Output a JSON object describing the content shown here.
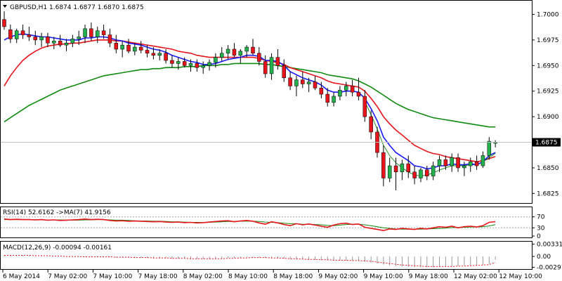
{
  "chart_data": [
    {
      "type": "candlestick",
      "symbol_header": "GBPUSD,H1  1.6874 1.6877 1.6870 1.6875",
      "price_axis": {
        "ticks": [
          "1.7000",
          "1.6975",
          "1.6950",
          "1.6925",
          "1.6900",
          "1.6850",
          "1.6825"
        ],
        "range": [
          1.6817,
          1.7012
        ],
        "current_price": "1.6875"
      },
      "x_axis_labels": [
        "6 May 2014",
        "7 May 02:00",
        "7 May 10:00",
        "7 May 18:00",
        "8 May 02:00",
        "8 May 10:00",
        "8 May 18:00",
        "9 May 02:00",
        "9 May 10:00",
        "9 May 18:00",
        "12 May 02:00",
        "12 May 10:00"
      ],
      "colors": {
        "up": "#22b14c",
        "down": "#e8141c",
        "wick": "#000000",
        "ma_fast": "#1a1aff",
        "ma_mid": "#e8141c",
        "ma_slow": "#128a12",
        "ma_thin": "#128a12"
      },
      "candles": [
        [
          1.6995,
          1.7003,
          1.6985,
          1.6988
        ],
        [
          1.6985,
          1.699,
          1.6972,
          1.6976
        ],
        [
          1.6976,
          1.6986,
          1.6972,
          1.6984
        ],
        [
          1.6984,
          1.699,
          1.6976,
          1.698
        ],
        [
          1.698,
          1.6988,
          1.6974,
          1.6978
        ],
        [
          1.6978,
          1.6984,
          1.697,
          1.6975
        ],
        [
          1.6975,
          1.6982,
          1.6968,
          1.6978
        ],
        [
          1.6978,
          1.6982,
          1.6968,
          1.6972
        ],
        [
          1.6972,
          1.6978,
          1.6966,
          1.6974
        ],
        [
          1.6974,
          1.698,
          1.6968,
          1.697
        ],
        [
          1.697,
          1.6976,
          1.6964,
          1.6972
        ],
        [
          1.6972,
          1.698,
          1.6968,
          1.6976
        ],
        [
          1.6976,
          1.6984,
          1.697,
          1.6978
        ],
        [
          1.6978,
          1.699,
          1.6972,
          1.6986
        ],
        [
          1.6986,
          1.6992,
          1.6974,
          1.6978
        ],
        [
          1.6978,
          1.6988,
          1.6972,
          1.6984
        ],
        [
          1.6984,
          1.699,
          1.6976,
          1.698
        ],
        [
          1.698,
          1.6986,
          1.6968,
          1.6972
        ],
        [
          1.6972,
          1.698,
          1.6962,
          1.6966
        ],
        [
          1.6966,
          1.6974,
          1.6958,
          1.697
        ],
        [
          1.697,
          1.6976,
          1.6962,
          1.6964
        ],
        [
          1.6964,
          1.6972,
          1.696,
          1.6968
        ],
        [
          1.6968,
          1.6974,
          1.6962,
          1.6965
        ],
        [
          1.6965,
          1.697,
          1.6958,
          1.6962
        ],
        [
          1.6962,
          1.6968,
          1.6956,
          1.696
        ],
        [
          1.696,
          1.6966,
          1.6955,
          1.6962
        ],
        [
          1.6962,
          1.6966,
          1.6952,
          1.6955
        ],
        [
          1.6955,
          1.696,
          1.6948,
          1.6952
        ],
        [
          1.6952,
          1.6958,
          1.6946,
          1.6954
        ],
        [
          1.6954,
          1.6958,
          1.6948,
          1.695
        ],
        [
          1.695,
          1.6956,
          1.6944,
          1.6952
        ],
        [
          1.6952,
          1.6956,
          1.6944,
          1.6948
        ],
        [
          1.6948,
          1.6954,
          1.6942,
          1.695
        ],
        [
          1.695,
          1.6956,
          1.6945,
          1.6953
        ],
        [
          1.6953,
          1.6962,
          1.6948,
          1.6958
        ],
        [
          1.6958,
          1.6968,
          1.6954,
          1.6962
        ],
        [
          1.6962,
          1.697,
          1.6956,
          1.6966
        ],
        [
          1.6966,
          1.6972,
          1.6958,
          1.696
        ],
        [
          1.696,
          1.6966,
          1.6952,
          1.6964
        ],
        [
          1.6964,
          1.697,
          1.6958,
          1.6968
        ],
        [
          1.6968,
          1.6976,
          1.696,
          1.6962
        ],
        [
          1.6962,
          1.6968,
          1.695,
          1.6954
        ],
        [
          1.6954,
          1.696,
          1.6938,
          1.6942
        ],
        [
          1.6942,
          1.6962,
          1.6936,
          1.6958
        ],
        [
          1.6958,
          1.6966,
          1.6946,
          1.695
        ],
        [
          1.695,
          1.6956,
          1.6934,
          1.6938
        ],
        [
          1.6938,
          1.6944,
          1.6926,
          1.693
        ],
        [
          1.693,
          1.694,
          1.692,
          1.6936
        ],
        [
          1.6936,
          1.6944,
          1.6928,
          1.6932
        ],
        [
          1.6932,
          1.6938,
          1.6924,
          1.6934
        ],
        [
          1.6934,
          1.694,
          1.6926,
          1.6928
        ],
        [
          1.6928,
          1.6934,
          1.6918,
          1.6922
        ],
        [
          1.6922,
          1.6928,
          1.691,
          1.6914
        ],
        [
          1.6914,
          1.6924,
          1.691,
          1.692
        ],
        [
          1.692,
          1.693,
          1.6916,
          1.6926
        ],
        [
          1.6926,
          1.6934,
          1.692,
          1.693
        ],
        [
          1.693,
          1.6936,
          1.692,
          1.6924
        ],
        [
          1.6924,
          1.6938,
          1.6916,
          1.692
        ],
        [
          1.692,
          1.6926,
          1.6895,
          1.69
        ],
        [
          1.69,
          1.6906,
          1.6878,
          1.6885
        ],
        [
          1.6885,
          1.689,
          1.686,
          1.6865
        ],
        [
          1.6865,
          1.6872,
          1.6832,
          1.684
        ],
        [
          1.684,
          1.686,
          1.6836,
          1.6852
        ],
        [
          1.6852,
          1.686,
          1.6828,
          1.6846
        ],
        [
          1.6846,
          1.6858,
          1.6838,
          1.6854
        ],
        [
          1.6854,
          1.6862,
          1.684,
          1.6846
        ],
        [
          1.6846,
          1.6852,
          1.6834,
          1.684
        ],
        [
          1.684,
          1.685,
          1.6836,
          1.6848
        ],
        [
          1.6848,
          1.6852,
          1.6838,
          1.6842
        ],
        [
          1.6842,
          1.6856,
          1.6838,
          1.6852
        ],
        [
          1.6852,
          1.6862,
          1.6846,
          1.6858
        ],
        [
          1.6858,
          1.6862,
          1.6848,
          1.6852
        ],
        [
          1.6852,
          1.6864,
          1.6846,
          1.686
        ],
        [
          1.686,
          1.6864,
          1.6846,
          1.685
        ],
        [
          1.685,
          1.6856,
          1.6842,
          1.6852
        ],
        [
          1.6852,
          1.686,
          1.6846,
          1.6856
        ],
        [
          1.6856,
          1.6862,
          1.6848,
          1.6852
        ],
        [
          1.6852,
          1.6866,
          1.685,
          1.6862
        ],
        [
          1.6862,
          1.688,
          1.6858,
          1.6876
        ],
        [
          1.6874,
          1.6877,
          1.687,
          1.6875
        ]
      ],
      "ma_fast": [
        1.6975,
        1.6978,
        1.698,
        1.6981,
        1.698,
        1.6979,
        1.6978,
        1.6978,
        1.6977,
        1.6976,
        1.6975,
        1.6975,
        1.6975,
        1.6977,
        1.6977,
        1.6978,
        1.6978,
        1.6977,
        1.6975,
        1.6974,
        1.6972,
        1.6971,
        1.697,
        1.6968,
        1.6966,
        1.6965,
        1.6963,
        1.696,
        1.6958,
        1.6956,
        1.6954,
        1.6953,
        1.6951,
        1.6951,
        1.6952,
        1.6954,
        1.6956,
        1.6957,
        1.6958,
        1.696,
        1.696,
        1.6959,
        1.6955,
        1.6955,
        1.6954,
        1.695,
        1.6944,
        1.6941,
        1.6938,
        1.6936,
        1.6934,
        1.6931,
        1.6926,
        1.6924,
        1.6924,
        1.6925,
        1.6925,
        1.6924,
        1.6918,
        1.6908,
        1.6896,
        1.688,
        1.6872,
        1.6865,
        1.6861,
        1.6857,
        1.6852,
        1.6851,
        1.6849,
        1.685,
        1.6852,
        1.6852,
        1.6854,
        1.6853,
        1.6853,
        1.6854,
        1.6853,
        1.6856,
        1.6862,
        1.6865
      ],
      "ma_mid": [
        1.693,
        1.694,
        1.6948,
        1.6955,
        1.696,
        1.6964,
        1.6967,
        1.6969,
        1.697,
        1.6971,
        1.6971,
        1.6972,
        1.6972,
        1.6973,
        1.6974,
        1.6975,
        1.6975,
        1.6975,
        1.6974,
        1.6974,
        1.6973,
        1.6972,
        1.6971,
        1.697,
        1.6969,
        1.6968,
        1.6967,
        1.6966,
        1.6964,
        1.6963,
        1.6962,
        1.696,
        1.6959,
        1.6958,
        1.6958,
        1.6958,
        1.6958,
        1.6958,
        1.6958,
        1.6958,
        1.6958,
        1.6957,
        1.6955,
        1.6954,
        1.6953,
        1.6951,
        1.6948,
        1.6946,
        1.6944,
        1.6942,
        1.694,
        1.6938,
        1.6935,
        1.6933,
        1.6932,
        1.6931,
        1.693,
        1.6929,
        1.6925,
        1.6918,
        1.691,
        1.69,
        1.6893,
        1.6887,
        1.6882,
        1.6877,
        1.6872,
        1.6869,
        1.6866,
        1.6864,
        1.6863,
        1.6861,
        1.686,
        1.6859,
        1.6858,
        1.6857,
        1.6856,
        1.6857,
        1.6859,
        1.6861
      ],
      "ma_slow": [
        1.6895,
        1.6899,
        1.6903,
        1.6907,
        1.6911,
        1.6914,
        1.6917,
        1.692,
        1.6923,
        1.6926,
        1.6928,
        1.693,
        1.6932,
        1.6934,
        1.6936,
        1.6938,
        1.694,
        1.6941,
        1.6942,
        1.6943,
        1.6944,
        1.6945,
        1.6946,
        1.6946,
        1.6947,
        1.6947,
        1.6948,
        1.6948,
        1.6948,
        1.6949,
        1.6949,
        1.6949,
        1.695,
        1.695,
        1.695,
        1.6951,
        1.6951,
        1.6952,
        1.6952,
        1.6952,
        1.6952,
        1.6952,
        1.6951,
        1.6951,
        1.695,
        1.6949,
        1.6948,
        1.6947,
        1.6946,
        1.6945,
        1.6944,
        1.6943,
        1.6941,
        1.694,
        1.6939,
        1.6938,
        1.6937,
        1.6935,
        1.6932,
        1.6929,
        1.6925,
        1.6921,
        1.6917,
        1.6913,
        1.691,
        1.6907,
        1.6905,
        1.6903,
        1.6901,
        1.6899,
        1.6898,
        1.6897,
        1.6896,
        1.6895,
        1.6894,
        1.6893,
        1.6892,
        1.6891,
        1.689,
        1.689
      ],
      "ma_thin": [
        null,
        null,
        null,
        null,
        null,
        null,
        null,
        null,
        null,
        null,
        null,
        null,
        null,
        null,
        null,
        null,
        null,
        null,
        null,
        null,
        null,
        null,
        null,
        null,
        null,
        null,
        null,
        null,
        null,
        null,
        null,
        null,
        null,
        null,
        null,
        null,
        null,
        null,
        null,
        null,
        null,
        null,
        null,
        null,
        null,
        null,
        null,
        null,
        null,
        null,
        null,
        null,
        null,
        null,
        null,
        null,
        null,
        null,
        1.6915,
        1.6902,
        1.6888,
        1.6872,
        1.6862,
        1.6855,
        1.685,
        1.6846,
        1.6843,
        1.6842,
        1.6843,
        1.6845,
        1.6848,
        1.685,
        1.6852,
        1.6852,
        1.6852,
        1.6853,
        1.6853,
        1.6856,
        1.686,
        1.6864
      ]
    },
    {
      "type": "line",
      "label": "RSI(14) 52.6162  ->MA(7) 41.9156",
      "range": [
        0,
        100
      ],
      "ticks": [
        "70",
        "30",
        "0"
      ],
      "rsi": [
        62,
        60,
        61,
        60,
        60,
        59,
        60,
        58,
        59,
        57,
        58,
        59,
        60,
        62,
        60,
        61,
        60,
        57,
        55,
        56,
        54,
        55,
        54,
        53,
        52,
        53,
        51,
        50,
        51,
        49,
        50,
        48,
        49,
        51,
        53,
        55,
        56,
        52,
        55,
        57,
        54,
        48,
        43,
        52,
        48,
        42,
        38,
        45,
        41,
        44,
        40,
        36,
        32,
        40,
        45,
        47,
        42,
        44,
        32,
        28,
        24,
        20,
        26,
        24,
        28,
        26,
        24,
        28,
        26,
        30,
        34,
        32,
        36,
        30,
        34,
        36,
        33,
        38,
        50,
        52.6
      ],
      "rsi_ma": [
        60,
        60,
        60,
        60,
        60,
        60,
        59,
        59,
        59,
        59,
        58,
        58,
        58,
        59,
        59,
        60,
        60,
        59,
        58,
        58,
        57,
        56,
        55,
        55,
        54,
        54,
        53,
        52,
        52,
        51,
        50,
        50,
        49,
        50,
        51,
        52,
        53,
        53,
        54,
        54,
        54,
        53,
        51,
        50,
        49,
        47,
        45,
        45,
        43,
        43,
        42,
        41,
        39,
        38,
        40,
        42,
        43,
        43,
        41,
        38,
        34,
        30,
        28,
        26,
        25,
        25,
        25,
        25,
        26,
        27,
        28,
        29,
        31,
        31,
        32,
        33,
        33,
        34,
        37,
        41.9
      ]
    },
    {
      "type": "bar",
      "label": "MACD(12,26,9) -0.00094 -0.00161",
      "range": [
        -0.0032,
        0.0036
      ],
      "ticks": [
        "0.00331",
        "0.00",
        "-0.00291"
      ],
      "hist": [
        0.0002,
        0.0003,
        0.0003,
        0.0003,
        0.0002,
        0.0002,
        0.0001,
        0.0001,
        0.0,
        0.0,
        -0.0001,
        -0.0001,
        -0.0001,
        -0.0001,
        -0.0001,
        -0.0001,
        -0.0002,
        -0.0002,
        -0.0003,
        -0.0003,
        -0.0003,
        -0.0004,
        -0.0004,
        -0.0004,
        -0.0005,
        -0.0005,
        -0.0005,
        -0.0006,
        -0.0006,
        -0.0006,
        -0.0007,
        -0.0007,
        -0.0007,
        -0.0007,
        -0.0006,
        -0.0005,
        -0.0004,
        -0.0004,
        -0.0003,
        -0.0002,
        -0.0002,
        -0.0003,
        -0.0004,
        -0.0004,
        -0.0005,
        -0.0006,
        -0.0007,
        -0.0008,
        -0.0008,
        -0.0009,
        -0.0009,
        -0.001,
        -0.0011,
        -0.0011,
        -0.0011,
        -0.0011,
        -0.0011,
        -0.0012,
        -0.0014,
        -0.0016,
        -0.0019,
        -0.0022,
        -0.0024,
        -0.0026,
        -0.0027,
        -0.0028,
        -0.0029,
        -0.0029,
        -0.0029,
        -0.0029,
        -0.0028,
        -0.0028,
        -0.0027,
        -0.0026,
        -0.0025,
        -0.0024,
        -0.0023,
        -0.0022,
        -0.002,
        -0.0009
      ],
      "signal": [
        0.0003,
        0.0003,
        0.0003,
        0.0003,
        0.0003,
        0.0002,
        0.0002,
        0.0002,
        0.0001,
        0.0001,
        0.0,
        0.0,
        -0.0,
        -0.0001,
        -0.0001,
        -0.0001,
        -0.0001,
        -0.0001,
        -0.0002,
        -0.0002,
        -0.0002,
        -0.0003,
        -0.0003,
        -0.0003,
        -0.0004,
        -0.0004,
        -0.0004,
        -0.0005,
        -0.0005,
        -0.0005,
        -0.0006,
        -0.0006,
        -0.0006,
        -0.0006,
        -0.0006,
        -0.0006,
        -0.0005,
        -0.0005,
        -0.0004,
        -0.0004,
        -0.0003,
        -0.0003,
        -0.0003,
        -0.0004,
        -0.0004,
        -0.0005,
        -0.0006,
        -0.0006,
        -0.0007,
        -0.0008,
        -0.0008,
        -0.0009,
        -0.0009,
        -0.001,
        -0.001,
        -0.001,
        -0.0011,
        -0.0011,
        -0.0012,
        -0.0013,
        -0.0015,
        -0.0017,
        -0.0019,
        -0.0021,
        -0.0023,
        -0.0024,
        -0.0025,
        -0.0026,
        -0.0027,
        -0.0027,
        -0.0027,
        -0.0027,
        -0.0027,
        -0.0026,
        -0.0026,
        -0.0025,
        -0.0024,
        -0.0023,
        -0.0022,
        -0.0016
      ]
    }
  ]
}
